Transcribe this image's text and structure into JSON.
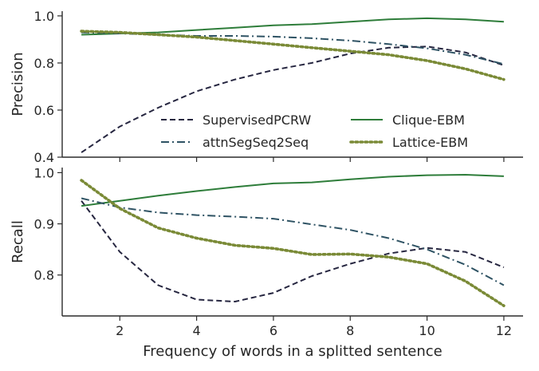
{
  "chart_data": [
    {
      "type": "line",
      "ylabel": "Precision",
      "xlabel": "",
      "xlim": [
        0.5,
        12.5
      ],
      "ylim": [
        0.4,
        1.02
      ],
      "x_ticks": [
        2,
        4,
        6,
        8,
        10,
        12
      ],
      "show_x_tick_labels": false,
      "y_ticks": [
        0.4,
        0.6,
        0.8,
        1.0
      ],
      "y_tick_labels": [
        "0.4",
        "0.6",
        "0.8",
        "1.0"
      ],
      "grid": false,
      "legend_placement": "lower-center",
      "x": [
        1,
        2,
        3,
        4,
        5,
        6,
        7,
        8,
        9,
        10,
        11,
        12
      ],
      "series": [
        {
          "name": "SupervisedPCRW",
          "style": "dashed",
          "color": "#262640",
          "values": [
            0.42,
            0.53,
            0.61,
            0.68,
            0.73,
            0.77,
            0.8,
            0.84,
            0.865,
            0.87,
            0.845,
            0.79
          ]
        },
        {
          "name": "Clique-EBM",
          "style": "solid",
          "color": "#2e7d3a",
          "values": [
            0.92,
            0.925,
            0.93,
            0.94,
            0.95,
            0.96,
            0.965,
            0.975,
            0.985,
            0.99,
            0.985,
            0.975
          ]
        },
        {
          "name": "attnSegSeq2Seq",
          "style": "dashdot",
          "color": "#2f5364",
          "values": [
            0.93,
            0.925,
            0.92,
            0.915,
            0.915,
            0.912,
            0.905,
            0.895,
            0.88,
            0.862,
            0.835,
            0.795
          ]
        },
        {
          "name": "Lattice-EBM",
          "style": "dotted",
          "color": "#7a8a36",
          "values": [
            0.935,
            0.93,
            0.92,
            0.91,
            0.895,
            0.88,
            0.865,
            0.85,
            0.835,
            0.81,
            0.775,
            0.73
          ]
        }
      ]
    },
    {
      "type": "line",
      "ylabel": "Recall",
      "xlabel": "Frequency of words in a splitted sentence",
      "xlim": [
        0.5,
        12.5
      ],
      "ylim": [
        0.72,
        1.01
      ],
      "x_ticks": [
        2,
        4,
        6,
        8,
        10,
        12
      ],
      "x_tick_labels": [
        "2",
        "4",
        "6",
        "8",
        "10",
        "12"
      ],
      "show_x_tick_labels": true,
      "y_ticks": [
        0.8,
        0.9,
        1.0
      ],
      "y_tick_labels": [
        "0.8",
        "0.9",
        "1.0"
      ],
      "grid": false,
      "x": [
        1,
        2,
        3,
        4,
        5,
        6,
        7,
        8,
        9,
        10,
        11,
        12
      ],
      "series": [
        {
          "name": "SupervisedPCRW",
          "style": "dashed",
          "color": "#262640",
          "values": [
            0.945,
            0.845,
            0.78,
            0.752,
            0.748,
            0.765,
            0.798,
            0.822,
            0.842,
            0.853,
            0.845,
            0.815
          ]
        },
        {
          "name": "Clique-EBM",
          "style": "solid",
          "color": "#2e7d3a",
          "values": [
            0.935,
            0.945,
            0.955,
            0.964,
            0.972,
            0.979,
            0.981,
            0.987,
            0.992,
            0.995,
            0.996,
            0.993
          ]
        },
        {
          "name": "attnSegSeq2Seq",
          "style": "dashdot",
          "color": "#2f5364",
          "values": [
            0.95,
            0.932,
            0.922,
            0.917,
            0.914,
            0.91,
            0.899,
            0.888,
            0.872,
            0.85,
            0.82,
            0.78
          ]
        },
        {
          "name": "Lattice-EBM",
          "style": "dotted",
          "color": "#7a8a36",
          "values": [
            0.985,
            0.93,
            0.892,
            0.872,
            0.858,
            0.852,
            0.84,
            0.841,
            0.835,
            0.822,
            0.788,
            0.74
          ]
        }
      ]
    }
  ]
}
